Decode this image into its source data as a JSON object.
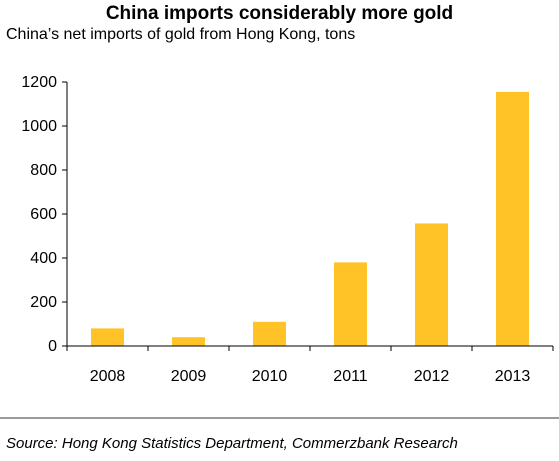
{
  "title": "China imports considerably more gold",
  "subtitle": "China’s net imports of gold from Hong Kong, tons",
  "source": "Source: Hong Kong Statistics Department, Commerzbank Research",
  "colors": {
    "bar": "#FFC328",
    "axis": "#000000",
    "divider": "#9a9a9a"
  },
  "chart_data": {
    "type": "bar",
    "categories": [
      "2008",
      "2009",
      "2010",
      "2011",
      "2012",
      "2013"
    ],
    "values": [
      80,
      40,
      110,
      380,
      557,
      1155
    ],
    "ylim": [
      0,
      1200
    ],
    "yticks": [
      0,
      200,
      400,
      600,
      800,
      1000,
      1200
    ],
    "grid": false,
    "legend": "none"
  }
}
